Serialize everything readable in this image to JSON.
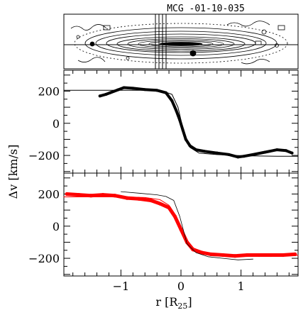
{
  "chart_data": [
    {
      "type": "image",
      "title": "MCG -01-10-035"
    },
    {
      "type": "line",
      "ylabel": "Δv [km/s]",
      "xlim": [
        -1.95,
        1.95
      ],
      "ylim": [
        -310,
        330
      ],
      "yticks": [
        200,
        0,
        -200
      ],
      "ytick_labels": [
        "200",
        "0",
        "−200"
      ],
      "series": [
        {
          "style": "black-thick",
          "color": "#000000",
          "x": [
            -1.35,
            -1.25,
            -1.18,
            -1.05,
            -0.95,
            -0.8,
            -0.6,
            -0.4,
            -0.25,
            -0.15,
            -0.08,
            -0.02,
            0.03,
            0.08,
            0.15,
            0.25,
            0.4,
            0.6,
            0.8,
            0.95,
            1.05,
            1.2,
            1.4,
            1.6,
            1.75,
            1.85
          ],
          "y": [
            170,
            180,
            190,
            208,
            222,
            218,
            210,
            205,
            190,
            140,
            80,
            20,
            -40,
            -100,
            -140,
            -165,
            -175,
            -185,
            -195,
            -210,
            -205,
            -195,
            -180,
            -165,
            -170,
            -185
          ]
        },
        {
          "style": "black-thin-model",
          "color": "#000000",
          "x": [
            -1.95,
            -1.6,
            -1.2,
            -0.9,
            -0.6,
            -0.3,
            -0.15,
            -0.05,
            0.05,
            0.15,
            0.3,
            0.6,
            0.9,
            1.2,
            1.6,
            1.95
          ],
          "y": [
            205,
            205,
            205,
            205,
            205,
            200,
            180,
            100,
            -60,
            -150,
            -185,
            -195,
            -200,
            -203,
            -205,
            -205
          ]
        }
      ]
    },
    {
      "type": "line",
      "xlabel": "r [R25]",
      "xlim": [
        -1.95,
        1.95
      ],
      "ylim": [
        -310,
        330
      ],
      "xticks": [
        -1,
        0,
        1
      ],
      "xtick_labels": [
        "−1",
        "0",
        "1"
      ],
      "yticks": [
        200,
        0,
        -200
      ],
      "ytick_labels": [
        "200",
        "0",
        "−200"
      ],
      "series": [
        {
          "style": "red-data",
          "color": "#ff0000",
          "x": [
            -1.9,
            -1.7,
            -1.5,
            -1.3,
            -1.1,
            -0.9,
            -0.7,
            -0.5,
            -0.35,
            -0.2,
            -0.1,
            0.0,
            0.1,
            0.2,
            0.35,
            0.5,
            0.7,
            0.9,
            1.1,
            1.3,
            1.5,
            1.7,
            1.9
          ],
          "y": [
            200,
            195,
            190,
            195,
            190,
            175,
            170,
            160,
            140,
            115,
            60,
            -20,
            -100,
            -145,
            -165,
            -175,
            -180,
            -185,
            -180,
            -180,
            -180,
            -180,
            -175
          ]
        },
        {
          "style": "red-model",
          "color": "#ff0000",
          "x": [
            -1.95,
            -1.5,
            -1.0,
            -0.6,
            -0.35,
            -0.2,
            -0.08,
            0.05,
            0.2,
            0.4,
            0.7,
            1.0,
            1.5,
            1.95
          ],
          "y": [
            182,
            182,
            182,
            178,
            165,
            130,
            60,
            -60,
            -135,
            -165,
            -178,
            -182,
            -182,
            -182
          ]
        },
        {
          "style": "black-thin",
          "color": "#000000",
          "x": [
            -1.0,
            -0.7,
            -0.4,
            -0.25,
            -0.12,
            -0.02,
            0.1,
            0.25,
            0.45,
            0.7,
            0.95,
            1.2
          ],
          "y": [
            215,
            205,
            195,
            185,
            160,
            60,
            -110,
            -165,
            -190,
            -200,
            -210,
            -205
          ]
        }
      ]
    }
  ]
}
